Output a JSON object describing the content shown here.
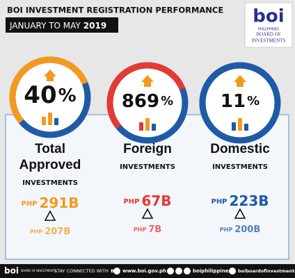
{
  "header": {
    "title": "BOI INVESTMENT REGISTRATION PERFORMANCE",
    "period": "JANUARY TO MAY",
    "year": "2019"
  },
  "logo": {
    "mark": "boi",
    "country": "PHILIPPINES",
    "line1": "BOARD OF",
    "line2": "INVESTMENTS"
  },
  "cards": [
    {
      "growth": "40",
      "unit": "%",
      "name": [
        "Total",
        "Approved"
      ],
      "label": "INVESTMENTS",
      "currency": "PHP",
      "current": "291B",
      "previous_currency": "PHP",
      "previous": "207B",
      "color": "#f39a1e",
      "ring": "#1f5aa6"
    },
    {
      "growth": "869",
      "unit": "%",
      "name": [
        "Foreign"
      ],
      "label": "INVESTMENTS",
      "currency": "PHP",
      "current": "67B",
      "previous_currency": "PHP",
      "previous": "7B",
      "color": "#e53935",
      "ring": "#1f5aa6"
    },
    {
      "growth": "11",
      "unit": "%",
      "name": [
        "Domestic"
      ],
      "label": "INVESTMENTS",
      "currency": "PHP",
      "current": "223B",
      "previous_currency": "PHP",
      "previous": "200B",
      "color": "#1f5aa6",
      "ring": "#1f5aa6"
    }
  ],
  "footer": {
    "mark": "boi",
    "org": "BOARD OF INVESTMENTS",
    "connect": "STAY CONNECTED WITH",
    "connect_bold": "BOI",
    "website": "www.boi.gov.ph",
    "social1": "boiphilippines",
    "social2": "boiboardofinvestments"
  }
}
